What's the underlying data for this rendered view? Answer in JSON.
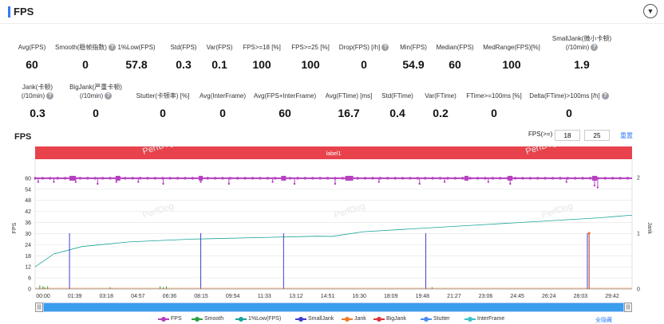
{
  "header": {
    "title": "FPS",
    "collapse_icon": "chevron-down-icon"
  },
  "stats_row1": [
    {
      "label": "Avg(FPS)",
      "value": "60",
      "help": false
    },
    {
      "label": "Smooth(稳帧指数)",
      "value": "0",
      "help": true
    },
    {
      "label": "1%Low(FPS)",
      "value": "57.8",
      "help": false
    },
    {
      "label": "Std(FPS)",
      "value": "0.3",
      "help": false
    },
    {
      "label": "Var(FPS)",
      "value": "0.1",
      "help": false
    },
    {
      "label": "FPS>=18 [%]",
      "value": "100",
      "help": false
    },
    {
      "label": "FPS>=25 [%]",
      "value": "100",
      "help": false
    },
    {
      "label": "Drop(FPS) [/h]",
      "value": "0",
      "help": true
    },
    {
      "label": "Min(FPS)",
      "value": "54.9",
      "help": false
    },
    {
      "label": "Median(FPS)",
      "value": "60",
      "help": false
    },
    {
      "label": "MedRange(FPS)[%]",
      "value": "100",
      "help": false
    },
    {
      "label": "SmallJank(微小卡顿)",
      "label2": "(/10min)",
      "value": "1.9",
      "help": true
    }
  ],
  "stats_row2": [
    {
      "label": "Jank(卡顿)",
      "label2": "(/10min)",
      "value": "0.3",
      "help": true
    },
    {
      "label": "BigJank(严重卡顿)",
      "label2": "(/10min)",
      "value": "0",
      "help": true
    },
    {
      "label": "Stutter(卡顿率) [%]",
      "value": "0",
      "help": false
    },
    {
      "label": "Avg(InterFrame)",
      "value": "0",
      "help": false
    },
    {
      "label": "Avg(FPS+InterFrame)",
      "value": "60",
      "help": false
    },
    {
      "label": "Avg(FTime) [ms]",
      "value": "16.7",
      "help": false
    },
    {
      "label": "Std(FTime)",
      "value": "0.4",
      "help": false
    },
    {
      "label": "Var(FTime)",
      "value": "0.2",
      "help": false
    },
    {
      "label": "FTime>=100ms [%]",
      "value": "0",
      "help": false
    },
    {
      "label": "Delta(FTime)>100ms [/h]",
      "value": "0",
      "help": true
    }
  ],
  "chart_header": {
    "title": "FPS",
    "filter_label": "FPS(>=)",
    "filter_low": "18",
    "filter_high": "25",
    "reset_label": "重置"
  },
  "watermark": "PerfDog",
  "controls": {
    "hide_all": "全隐藏",
    "handle_glyph": "|||"
  },
  "chart_data": {
    "type": "line",
    "label_band": "label1",
    "ylabel": "FPS",
    "y2label": "Jank",
    "ylim": [
      0,
      66
    ],
    "y_ticks": [
      0,
      6,
      12,
      18,
      24,
      30,
      36,
      42,
      48,
      54,
      60
    ],
    "y2lim": [
      0,
      2
    ],
    "y2_ticks": [
      0,
      1,
      2
    ],
    "x_ticks": [
      "00:00",
      "01:39",
      "03:18",
      "04:57",
      "06:36",
      "08:15",
      "09:54",
      "11:33",
      "13:12",
      "14:51",
      "16:30",
      "18:09",
      "19:48",
      "21:27",
      "23:06",
      "24:45",
      "26:24",
      "28:03",
      "29:42"
    ],
    "x_range_seconds": [
      0,
      1910
    ],
    "grid": true,
    "legend_position": "bottom",
    "colors": {
      "FPS": "#b63fc1",
      "Smooth": "#2ea043",
      "1%Low(FPS)": "#1aa39a",
      "SmallJank": "#3d3ecf",
      "Jank": "#f07a2a",
      "BigJank": "#e0323a",
      "Stutter": "#4a8df0",
      "InterFrame": "#38c2c9"
    },
    "series": [
      {
        "name": "FPS",
        "values_summary": {
          "typical": 60,
          "dips": [
            [
              10,
              58
            ],
            [
              60,
              58
            ],
            [
              130,
              58
            ],
            [
              200,
              57
            ],
            [
              260,
              58
            ],
            [
              330,
              58
            ],
            [
              410,
              57
            ],
            [
              530,
              58
            ],
            [
              620,
              57
            ],
            [
              760,
              58
            ],
            [
              830,
              57
            ],
            [
              960,
              57
            ],
            [
              1100,
              58
            ],
            [
              1230,
              57
            ],
            [
              1310,
              58
            ],
            [
              1450,
              58
            ],
            [
              1520,
              57
            ],
            [
              1700,
              58
            ],
            [
              1790,
              56
            ],
            [
              1800,
              55
            ]
          ]
        }
      },
      {
        "name": "1%Low(FPS)",
        "x": [
          0,
          60,
          150,
          300,
          500,
          750,
          900,
          950,
          1050,
          1200,
          1400,
          1600,
          1800,
          1910
        ],
        "y": [
          12,
          19,
          23,
          25.5,
          27,
          28,
          28.6,
          28.5,
          31,
          32.5,
          34.5,
          36.5,
          38.5,
          40
        ]
      },
      {
        "name": "SmallJank",
        "x": [
          110,
          530,
          795,
          1250,
          1767
        ],
        "y": [
          1,
          1,
          1,
          1,
          1
        ]
      },
      {
        "name": "Jank",
        "x": [
          1770
        ],
        "y": [
          1
        ]
      },
      {
        "name": "BigJank",
        "x": [],
        "y": []
      },
      {
        "name": "Smooth",
        "x": [
          15,
          25,
          30,
          40,
          240,
          400,
          410,
          420,
          1270
        ],
        "y": [
          2,
          1.5,
          1,
          1.5,
          1,
          1.5,
          1,
          1.5,
          1
        ]
      },
      {
        "name": "Stutter",
        "x": [],
        "y": []
      },
      {
        "name": "InterFrame",
        "x": [],
        "y": []
      }
    ],
    "legend": [
      "FPS",
      "Smooth",
      "1%Low(FPS)",
      "SmallJank",
      "Jank",
      "BigJank",
      "Stutter",
      "InterFrame"
    ]
  }
}
